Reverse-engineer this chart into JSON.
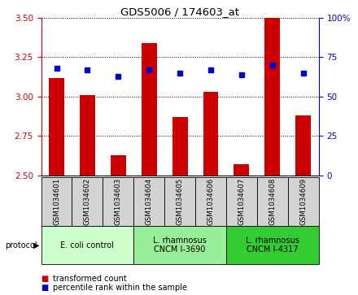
{
  "title": "GDS5006 / 174603_at",
  "samples": [
    "GSM1034601",
    "GSM1034602",
    "GSM1034603",
    "GSM1034604",
    "GSM1034605",
    "GSM1034606",
    "GSM1034607",
    "GSM1034608",
    "GSM1034609"
  ],
  "red_values": [
    3.12,
    3.01,
    2.63,
    3.34,
    2.87,
    3.03,
    2.57,
    3.5,
    2.88
  ],
  "blue_values": [
    68,
    67,
    63,
    67,
    65,
    67,
    64,
    70,
    65
  ],
  "ylim_left": [
    2.5,
    3.5
  ],
  "ylim_right": [
    0,
    100
  ],
  "yticks_left": [
    2.5,
    2.75,
    3.0,
    3.25,
    3.5
  ],
  "yticks_right": [
    0,
    25,
    50,
    75,
    100
  ],
  "ytick_labels_right": [
    "0",
    "25",
    "50",
    "75",
    "100%"
  ],
  "bar_color": "#cc0000",
  "dot_color": "#0000cc",
  "bar_bottom": 2.5,
  "group_labels": [
    "E. coli control",
    "L. rhamnosus\nCNCM I-3690",
    "L. rhamnosus\nCNCM I-4317"
  ],
  "group_starts": [
    0,
    3,
    6
  ],
  "group_ends": [
    3,
    6,
    9
  ],
  "group_colors": [
    "#ccffcc",
    "#99ee99",
    "#33cc33"
  ],
  "legend_red": "transformed count",
  "legend_blue": "percentile rank within the sample",
  "protocol_label": "protocol",
  "background_plot": "#ffffff",
  "background_labels": "#d3d3d3",
  "left_axis_color": "#cc0000",
  "right_axis_color": "#0000cc"
}
